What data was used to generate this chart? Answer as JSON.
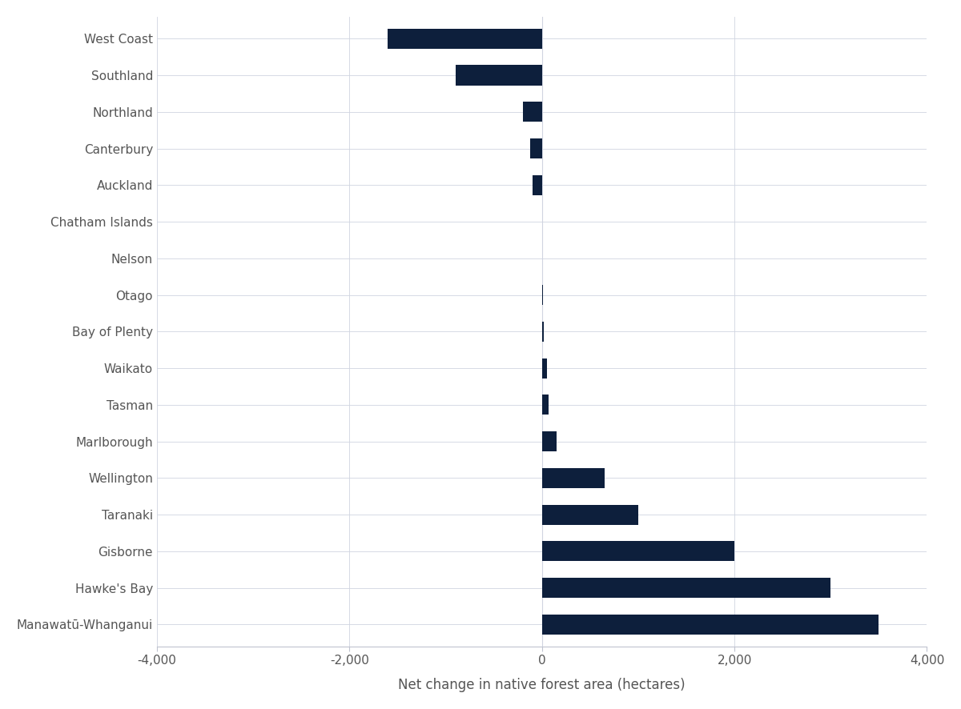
{
  "categories": [
    "Manawatū-Whanganui",
    "Hawke's Bay",
    "Gisborne",
    "Taranaki",
    "Wellington",
    "Marlborough",
    "Tasman",
    "Waikato",
    "Bay of Plenty",
    "Otago",
    "Nelson",
    "Chatham Islands",
    "Auckland",
    "Canterbury",
    "Northland",
    "Southland",
    "West Coast"
  ],
  "values": [
    3500,
    3000,
    2000,
    1000,
    650,
    150,
    70,
    50,
    20,
    10,
    0,
    0,
    -100,
    -120,
    -200,
    -900,
    -1600
  ],
  "bar_color": "#0d1f3c",
  "xlabel": "Net change in native forest area (hectares)",
  "xlim": [
    -4000,
    4000
  ],
  "xticks": [
    -4000,
    -2000,
    0,
    2000,
    4000
  ],
  "background_color": "#ffffff",
  "grid_color": "#d0d4e0",
  "spine_color": "#c0c4d0",
  "tick_label_color": "#555555",
  "axis_label_color": "#555555"
}
